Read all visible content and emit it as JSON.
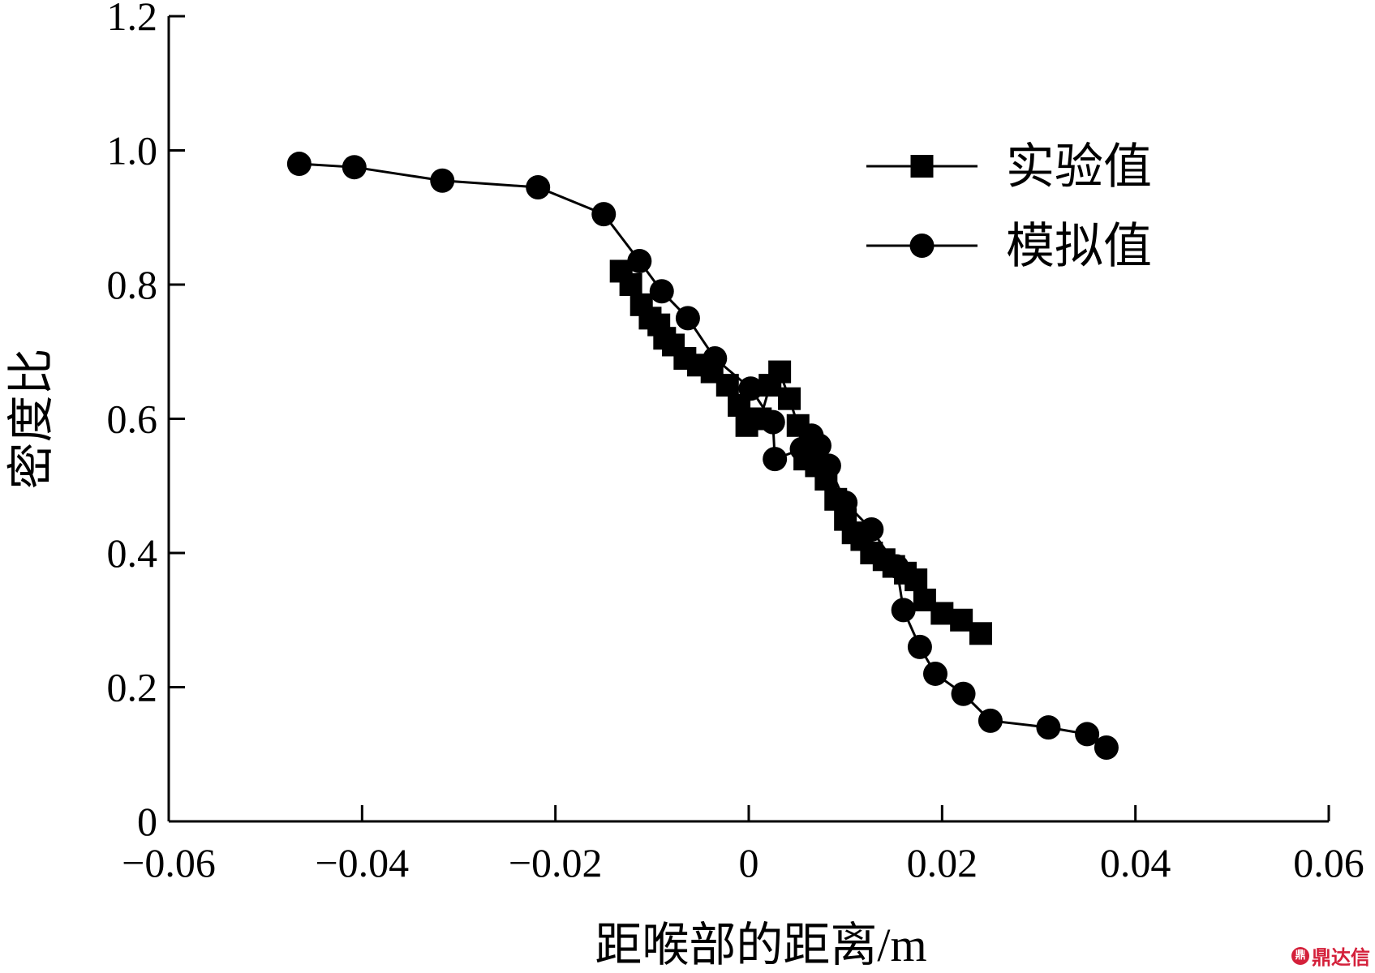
{
  "chart_data": {
    "type": "line",
    "title": "",
    "xlabel": "距喉部的距离/m",
    "ylabel": "密度比",
    "xlim": [
      -0.06,
      0.06
    ],
    "ylim": [
      0,
      1.2
    ],
    "x_ticks": [
      -0.06,
      -0.04,
      -0.02,
      0,
      0.02,
      0.04,
      0.06
    ],
    "x_tick_labels": [
      "−0.06",
      "−0.04",
      "−0.02",
      "0",
      "0.02",
      "0.04",
      "0.06"
    ],
    "y_ticks": [
      0,
      0.2,
      0.4,
      0.6,
      0.8,
      1.0,
      1.2
    ],
    "y_tick_labels": [
      "0",
      "0.2",
      "0.4",
      "0.6",
      "0.8",
      "1.0",
      "1.2"
    ],
    "grid": false,
    "legend_position": "top-right",
    "series": [
      {
        "name": "实验值",
        "marker": "square",
        "color": "#000000",
        "x": [
          -0.0132,
          -0.0122,
          -0.0111,
          -0.0102,
          -0.0093,
          -0.0087,
          -0.0078,
          -0.0066,
          -0.0052,
          -0.0038,
          -0.0022,
          -0.001,
          -0.0002,
          0.0012,
          0.0022,
          0.0032,
          0.0042,
          0.0051,
          0.0058,
          0.0063,
          0.007,
          0.008,
          0.009,
          0.01,
          0.0108,
          0.0117,
          0.0127,
          0.014,
          0.015,
          0.0162,
          0.0173,
          0.0182,
          0.02,
          0.022,
          0.024
        ],
        "y": [
          0.82,
          0.8,
          0.77,
          0.75,
          0.74,
          0.72,
          0.71,
          0.69,
          0.68,
          0.67,
          0.65,
          0.62,
          0.59,
          0.6,
          0.65,
          0.67,
          0.63,
          0.59,
          0.54,
          0.55,
          0.53,
          0.51,
          0.48,
          0.45,
          0.43,
          0.42,
          0.4,
          0.39,
          0.38,
          0.37,
          0.36,
          0.33,
          0.31,
          0.3,
          0.28
        ]
      },
      {
        "name": "模拟值",
        "marker": "circle",
        "color": "#000000",
        "x": [
          -0.0465,
          -0.0408,
          -0.0317,
          -0.0218,
          -0.015,
          -0.0113,
          -0.009,
          -0.0063,
          -0.0035,
          0.0002,
          0.0025,
          0.0027,
          0.0055,
          0.0065,
          0.0073,
          0.0083,
          0.01,
          0.0127,
          0.0153,
          0.016,
          0.0177,
          0.0193,
          0.0222,
          0.025,
          0.031,
          0.035,
          0.037
        ],
        "y": [
          0.98,
          0.975,
          0.955,
          0.945,
          0.905,
          0.835,
          0.79,
          0.75,
          0.69,
          0.645,
          0.595,
          0.54,
          0.555,
          0.575,
          0.56,
          0.53,
          0.475,
          0.435,
          0.38,
          0.315,
          0.26,
          0.22,
          0.19,
          0.15,
          0.14,
          0.13,
          0.11
        ]
      }
    ]
  },
  "watermark": {
    "logo_text": "鼎",
    "text": "鼎达信",
    "color": "#d4203a"
  }
}
